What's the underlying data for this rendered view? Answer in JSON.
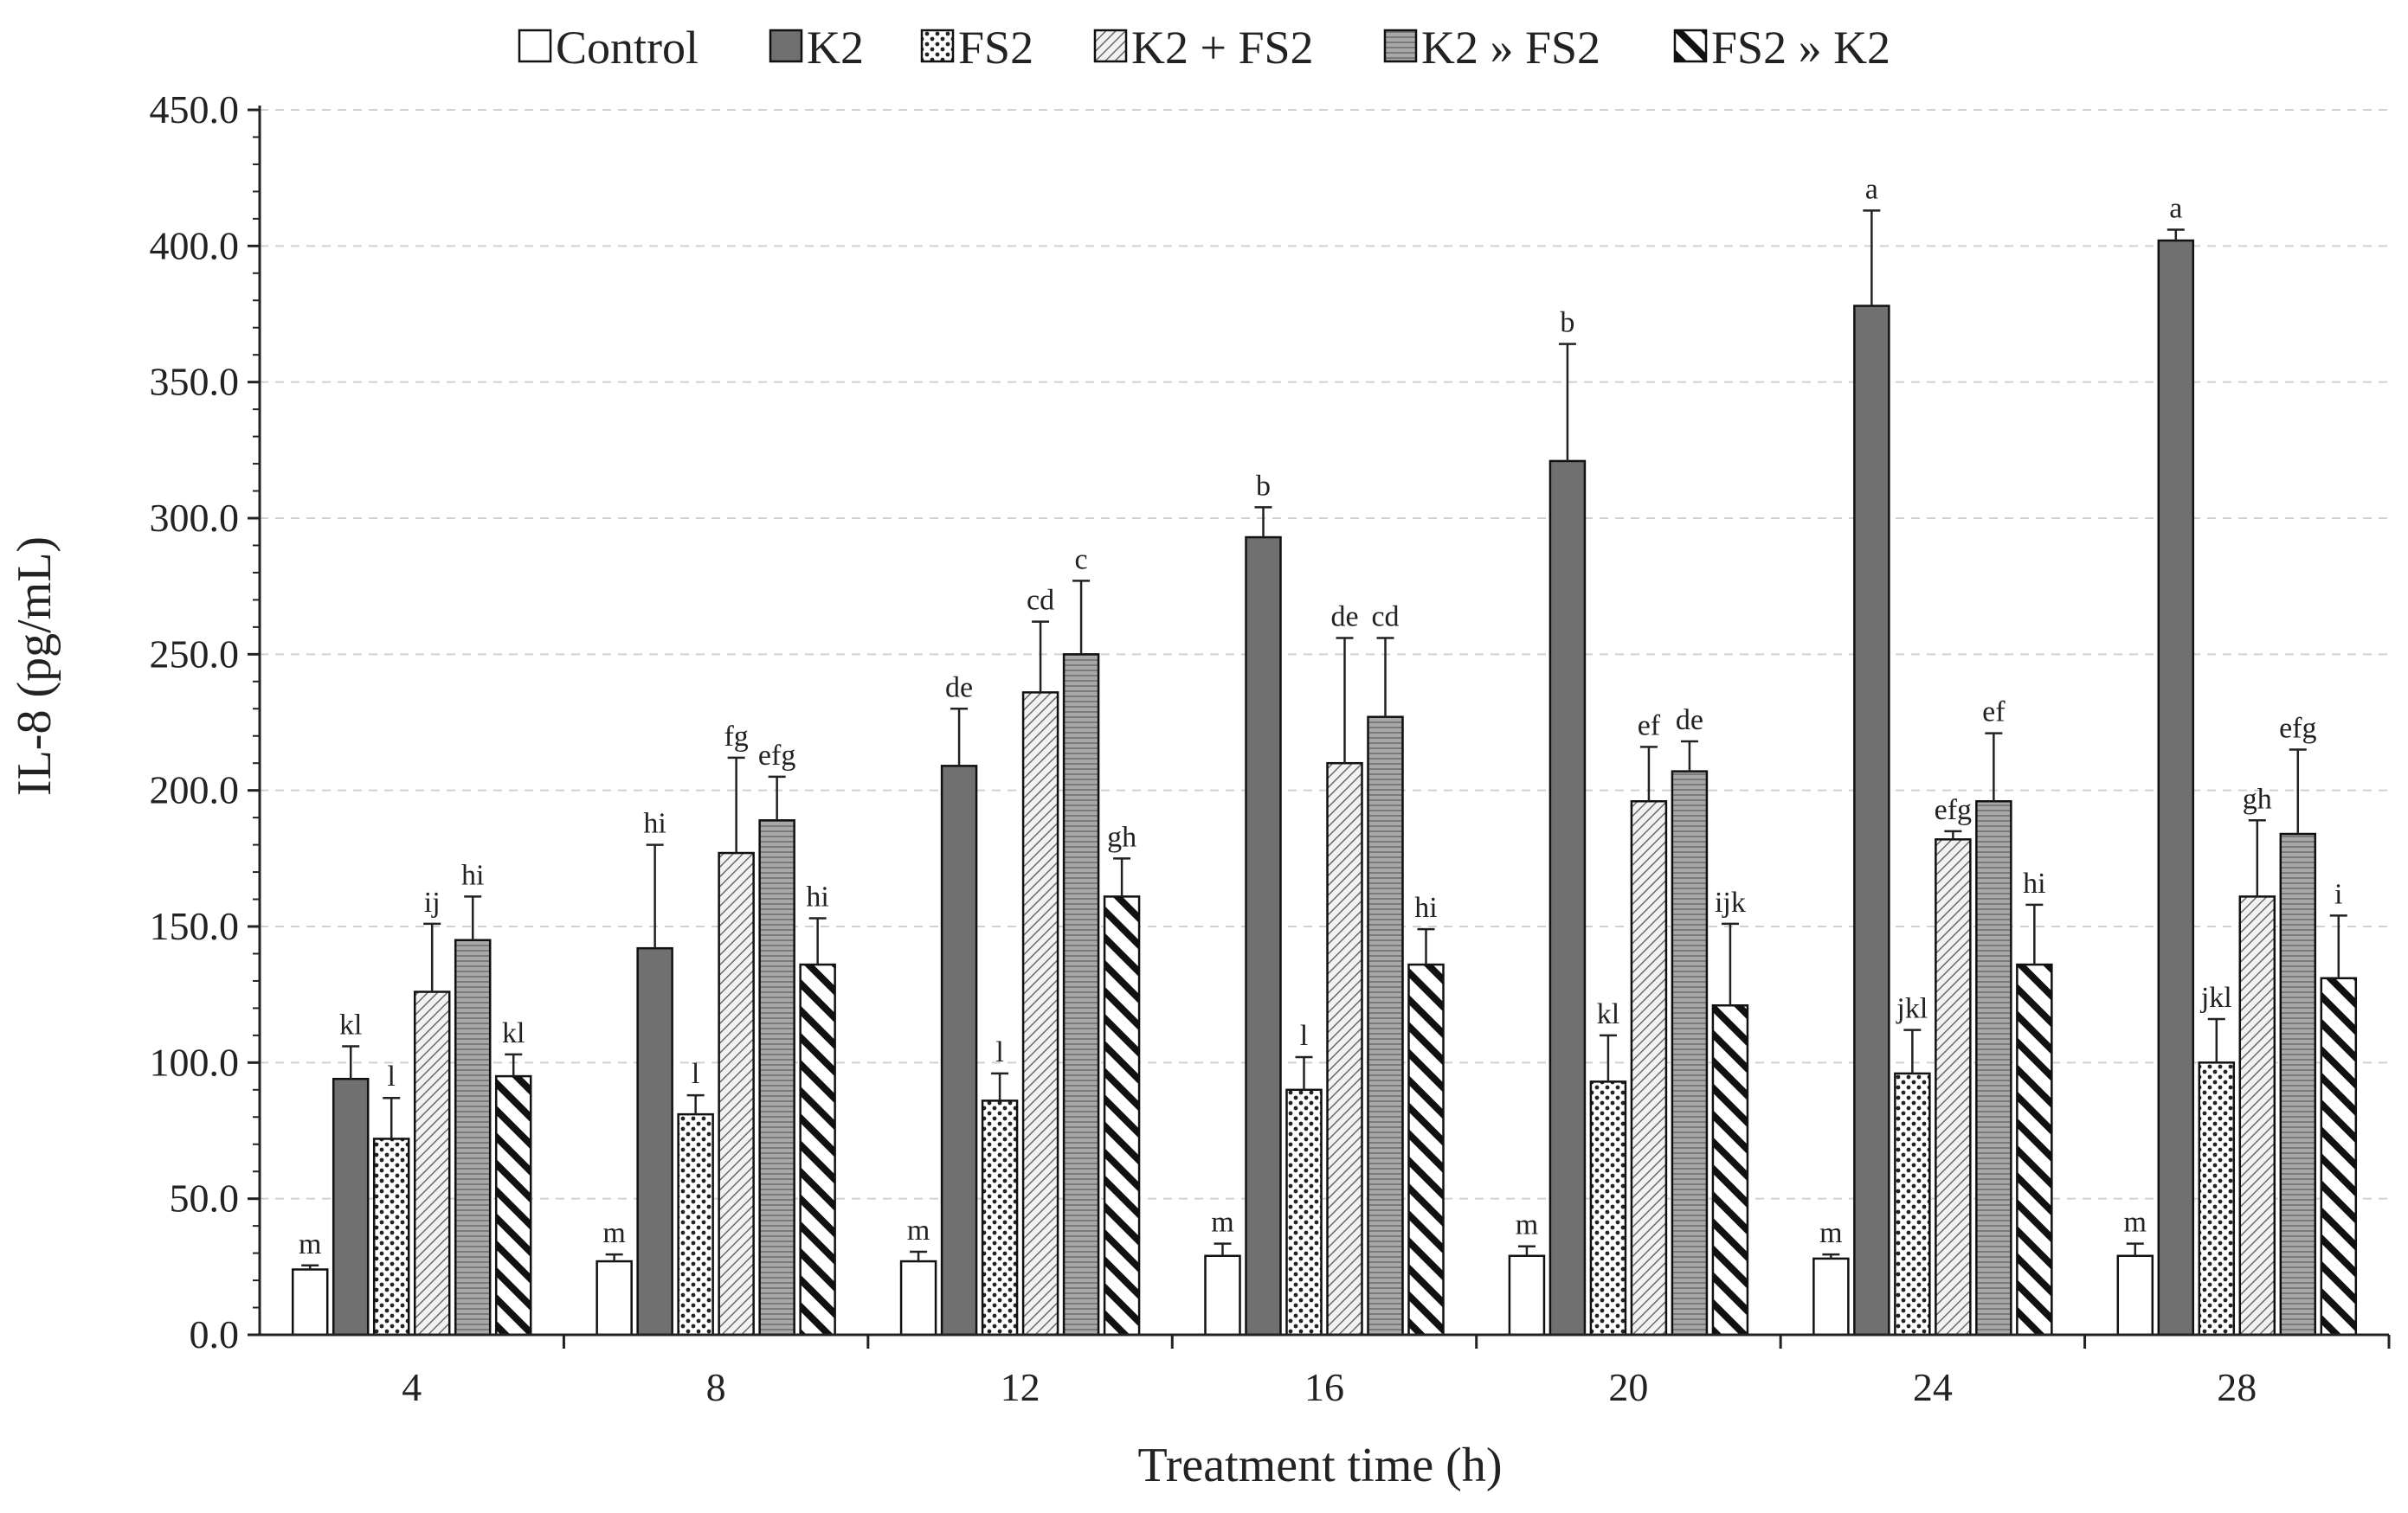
{
  "chart_data": {
    "type": "bar",
    "title": "",
    "xlabel": "Treatment time (h)",
    "ylabel": "IL-8 (pg/mL)",
    "ylim": [
      0,
      450
    ],
    "y_ticks": [
      "0.0",
      "50.0",
      "100.0",
      "150.0",
      "200.0",
      "250.0",
      "300.0",
      "350.0",
      "400.0",
      "450.0"
    ],
    "y_minor_step": 10,
    "grid": "horizontal dashed",
    "legend_position": "top",
    "categories": [
      "4",
      "8",
      "12",
      "16",
      "20",
      "24",
      "28"
    ],
    "series": [
      {
        "name": "Control",
        "pattern": "white",
        "values": [
          24,
          27,
          27,
          29,
          29,
          28,
          29
        ],
        "errors": [
          1.5,
          2.5,
          3.5,
          4.5,
          3.5,
          1.5,
          4.5
        ],
        "labels": [
          "m",
          "m",
          "m",
          "m",
          "m",
          "m",
          "m"
        ]
      },
      {
        "name": "K2",
        "pattern": "solid",
        "values": [
          94,
          142,
          209,
          293,
          321,
          378,
          402
        ],
        "errors": [
          12,
          38,
          21,
          11,
          43,
          35,
          4
        ],
        "labels": [
          "kl",
          "hi",
          "de",
          "b",
          "b",
          "a",
          "a"
        ]
      },
      {
        "name": "FS2",
        "pattern": "dots",
        "values": [
          72,
          81,
          86,
          90,
          93,
          96,
          100
        ],
        "errors": [
          15,
          7,
          10,
          12,
          17,
          16,
          16
        ],
        "labels": [
          "l",
          "l",
          "l",
          "l",
          "kl",
          "jkl",
          "jkl"
        ]
      },
      {
        "name": "K2 + FS2",
        "pattern": "diagonal-fine",
        "values": [
          126,
          177,
          236,
          210,
          196,
          182,
          161
        ],
        "errors": [
          25,
          35,
          26,
          46,
          20,
          3,
          28
        ],
        "labels": [
          "ij",
          "fg",
          "cd",
          "de",
          "ef",
          "efg",
          "gh"
        ]
      },
      {
        "name": "K2 » FS2",
        "pattern": "horizontal",
        "values": [
          145,
          189,
          250,
          227,
          207,
          196,
          184
        ],
        "errors": [
          16,
          16,
          27,
          29,
          11,
          25,
          31
        ],
        "labels": [
          "hi",
          "efg",
          "c",
          "cd",
          "de",
          "ef",
          "efg"
        ]
      },
      {
        "name": "FS2 » K2",
        "pattern": "diagonal-bold",
        "values": [
          95,
          136,
          161,
          136,
          121,
          136,
          131
        ],
        "errors": [
          8,
          17,
          14,
          13,
          30,
          22,
          23
        ],
        "labels": [
          "kl",
          "hi",
          "gh",
          "hi",
          "ijk",
          "hi",
          "i"
        ]
      }
    ]
  }
}
